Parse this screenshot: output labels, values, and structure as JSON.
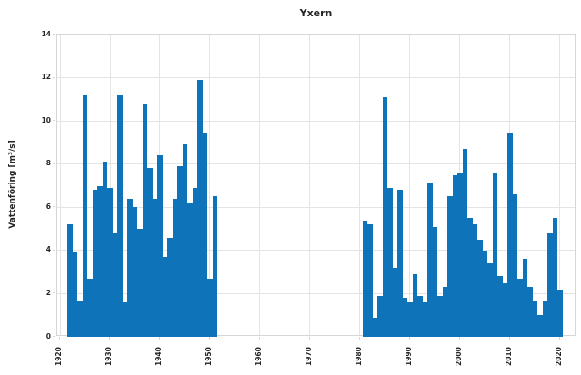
{
  "title": "Yxern",
  "ylabel": "Vattenföring [m³/s]",
  "chart_data": {
    "type": "bar",
    "title": "Yxern",
    "xlabel": "",
    "ylabel": "Vattenföring [m³/s]",
    "bar_color": "#0e73b9",
    "grid": true,
    "legend": "none",
    "xlim": [
      1919.45,
      2023.3
    ],
    "ylim": [
      0,
      14
    ],
    "x_ticks": [
      1920,
      1930,
      1940,
      1950,
      1960,
      1970,
      1980,
      1990,
      2000,
      2010,
      2020
    ],
    "y_ticks": [
      0,
      2,
      4,
      6,
      8,
      10,
      12,
      14
    ],
    "x_tick_rotation_deg": 90,
    "gap_years": "no data 1952-1980",
    "bars": [
      [
        1922,
        5.2
      ],
      [
        1923,
        3.9
      ],
      [
        1924,
        1.7
      ],
      [
        1925,
        11.2
      ],
      [
        1926,
        2.7
      ],
      [
        1927,
        6.8
      ],
      [
        1928,
        7.0
      ],
      [
        1929,
        8.1
      ],
      [
        1930,
        6.9
      ],
      [
        1931,
        4.8
      ],
      [
        1932,
        11.2
      ],
      [
        1933,
        1.6
      ],
      [
        1934,
        6.4
      ],
      [
        1935,
        6.0
      ],
      [
        1936,
        5.0
      ],
      [
        1937,
        10.8
      ],
      [
        1938,
        7.8
      ],
      [
        1939,
        6.4
      ],
      [
        1940,
        8.4
      ],
      [
        1941,
        3.7
      ],
      [
        1942,
        4.6
      ],
      [
        1943,
        6.4
      ],
      [
        1944,
        7.9
      ],
      [
        1945,
        8.9
      ],
      [
        1946,
        6.2
      ],
      [
        1947,
        6.9
      ],
      [
        1948,
        11.9
      ],
      [
        1949,
        9.4
      ],
      [
        1950,
        2.7
      ],
      [
        1951,
        6.5
      ],
      [
        1981,
        5.4
      ],
      [
        1982,
        5.2
      ],
      [
        1983,
        0.9
      ],
      [
        1984,
        1.9
      ],
      [
        1985,
        11.1
      ],
      [
        1986,
        6.9
      ],
      [
        1987,
        3.2
      ],
      [
        1988,
        6.8
      ],
      [
        1989,
        1.8
      ],
      [
        1990,
        1.6
      ],
      [
        1991,
        2.9
      ],
      [
        1992,
        1.9
      ],
      [
        1993,
        1.6
      ],
      [
        1994,
        7.1
      ],
      [
        1995,
        5.1
      ],
      [
        1996,
        1.9
      ],
      [
        1997,
        2.3
      ],
      [
        1998,
        6.5
      ],
      [
        1999,
        7.5
      ],
      [
        2000,
        7.6
      ],
      [
        2001,
        8.7
      ],
      [
        2002,
        5.5
      ],
      [
        2003,
        5.2
      ],
      [
        2004,
        4.5
      ],
      [
        2005,
        4.0
      ],
      [
        2006,
        3.4
      ],
      [
        2007,
        7.6
      ],
      [
        2008,
        2.8
      ],
      [
        2009,
        2.5
      ],
      [
        2010,
        9.4
      ],
      [
        2011,
        6.6
      ],
      [
        2012,
        2.7
      ],
      [
        2013,
        3.6
      ],
      [
        2014,
        2.3
      ],
      [
        2015,
        1.7
      ],
      [
        2016,
        1.0
      ],
      [
        2017,
        1.7
      ],
      [
        2018,
        4.8
      ],
      [
        2019,
        5.5
      ],
      [
        2020,
        2.2
      ]
    ]
  }
}
